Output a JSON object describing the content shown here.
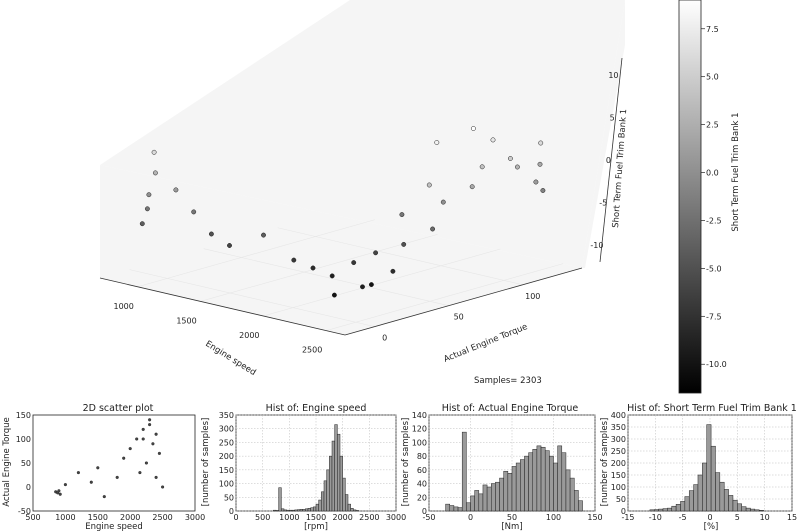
{
  "colors": {
    "low": "#000000",
    "high": "#ffffff",
    "bar": "#9a9a9a",
    "pane": "#f5f5f5"
  },
  "samples_text": "Samples= 2303",
  "chart_data": [
    {
      "id": "main3d",
      "type": "scatter",
      "title": "",
      "x_label": "Engine speed",
      "y_label": "Actual Engine Torque",
      "z_label": "Short Term Fuel Trim Bank 1",
      "x_ticks": [
        "1000",
        "1500",
        "2000",
        "2500"
      ],
      "y_ticks": [
        "0",
        "50",
        "100"
      ],
      "z_ticks": [
        "10",
        "5",
        "0",
        "-5",
        "-10"
      ],
      "xlim": [
        700,
        2650
      ],
      "ylim": [
        -20,
        140
      ],
      "zlim": [
        -12,
        12
      ],
      "color_by": "Short Term Fuel Trim Bank 1",
      "points": [
        [
          900,
          -10,
          0
        ],
        [
          900,
          -10,
          -2
        ],
        [
          910,
          -8,
          3
        ],
        [
          905,
          -10,
          6
        ],
        [
          895,
          -12,
          -4
        ],
        [
          1050,
          -5,
          1
        ],
        [
          1150,
          0,
          -2
        ],
        [
          1250,
          5,
          -5
        ],
        [
          1400,
          5,
          -6
        ],
        [
          1600,
          10,
          -4
        ],
        [
          1800,
          15,
          -7
        ],
        [
          1900,
          20,
          -8
        ],
        [
          2000,
          25,
          -9
        ],
        [
          2100,
          30,
          -7
        ],
        [
          2200,
          35,
          -10
        ],
        [
          2300,
          40,
          -8
        ],
        [
          2250,
          50,
          -5
        ],
        [
          2350,
          60,
          -3
        ],
        [
          2300,
          70,
          0
        ],
        [
          2400,
          80,
          2
        ],
        [
          2350,
          90,
          4
        ],
        [
          2450,
          100,
          5
        ],
        [
          2400,
          110,
          3
        ],
        [
          2500,
          115,
          1
        ],
        [
          2450,
          120,
          6
        ],
        [
          2200,
          70,
          8
        ],
        [
          2250,
          90,
          9
        ],
        [
          2300,
          100,
          7
        ],
        [
          2100,
          60,
          -2
        ],
        [
          2150,
          40,
          -6
        ],
        [
          2350,
          130,
          2
        ],
        [
          2450,
          125,
          -1
        ],
        [
          2300,
          20,
          -9
        ],
        [
          2200,
          10,
          -10
        ],
        [
          2400,
          50,
          4
        ]
      ]
    },
    {
      "id": "colorbar",
      "type": "heatmap",
      "label": "Short Term Fuel Trim Bank 1",
      "ticks": [
        "7.5",
        "5.0",
        "2.5",
        "0.0",
        "-2.5",
        "-5.0",
        "-7.5",
        "-10.0"
      ],
      "range": [
        -11.5,
        9
      ]
    },
    {
      "id": "scatter2d",
      "type": "scatter",
      "title": "2D scatter plot",
      "x_label": "Engine speed",
      "y_label": "Actual Engine Torque",
      "x_ticks": [
        "500",
        "1000",
        "1500",
        "2000",
        "2500",
        "3000"
      ],
      "y_ticks": [
        "150",
        "100",
        "50",
        "0",
        "-50"
      ],
      "xlim": [
        500,
        3000
      ],
      "ylim": [
        -50,
        150
      ],
      "points": [
        [
          850,
          -10
        ],
        [
          880,
          -12
        ],
        [
          900,
          -8
        ],
        [
          920,
          -15
        ],
        [
          1000,
          5
        ],
        [
          1200,
          30
        ],
        [
          1400,
          10
        ],
        [
          1500,
          40
        ],
        [
          1600,
          -20
        ],
        [
          1800,
          20
        ],
        [
          1900,
          60
        ],
        [
          2000,
          80
        ],
        [
          2100,
          100
        ],
        [
          2200,
          120
        ],
        [
          2300,
          130
        ],
        [
          2400,
          110
        ],
        [
          2350,
          90
        ],
        [
          2450,
          70
        ],
        [
          2250,
          50
        ],
        [
          2150,
          30
        ],
        [
          2400,
          20
        ],
        [
          2500,
          0
        ],
        [
          2300,
          140
        ],
        [
          2200,
          100
        ]
      ]
    },
    {
      "id": "hist_speed",
      "type": "bar",
      "title": "Hist of: Engine speed",
      "x_label": "[rpm]",
      "y_label": "[number of samples]",
      "x_ticks": [
        "0",
        "500",
        "1000",
        "1500",
        "2000",
        "2500",
        "3000"
      ],
      "y_ticks": [
        "350",
        "300",
        "250",
        "200",
        "150",
        "100",
        "50",
        "0"
      ],
      "xlim": [
        0,
        3000
      ],
      "ylim": [
        0,
        350
      ],
      "bin_start": 700,
      "bin_width": 50,
      "values": [
        3,
        2,
        85,
        8,
        4,
        3,
        3,
        3,
        4,
        5,
        6,
        6,
        8,
        10,
        12,
        15,
        25,
        40,
        70,
        110,
        150,
        200,
        255,
        315,
        280,
        200,
        120,
        60,
        25,
        10,
        4,
        2
      ]
    },
    {
      "id": "hist_torque",
      "type": "bar",
      "title": "Hist of: Actual Engine Torque",
      "x_label": "[Nm]",
      "y_label": "[number of samples]",
      "x_ticks": [
        "-50",
        "0",
        "50",
        "100",
        "150"
      ],
      "y_ticks": [
        "140",
        "120",
        "100",
        "80",
        "60",
        "40",
        "20",
        "0"
      ],
      "xlim": [
        -50,
        150
      ],
      "ylim": [
        0,
        140
      ],
      "bin_start": -30,
      "bin_width": 5,
      "values": [
        10,
        8,
        6,
        5,
        115,
        12,
        22,
        30,
        25,
        38,
        35,
        40,
        42,
        48,
        58,
        55,
        65,
        70,
        75,
        80,
        85,
        90,
        95,
        93,
        88,
        80,
        70,
        95,
        85,
        60,
        48,
        30,
        15
      ]
    },
    {
      "id": "hist_fuel",
      "type": "bar",
      "title": "Hist of: Short Term Fuel Trim Bank 1",
      "x_label": "[%]",
      "y_label": "[number of samples]",
      "x_ticks": [
        "-15",
        "-10",
        "-5",
        "0",
        "5",
        "10",
        "15"
      ],
      "y_ticks": [
        "400",
        "350",
        "300",
        "250",
        "200",
        "150",
        "100",
        "50",
        "0"
      ],
      "xlim": [
        -15,
        15
      ],
      "ylim": [
        0,
        400
      ],
      "bin_start": -11,
      "bin_width": 0.8,
      "values": [
        5,
        6,
        8,
        10,
        12,
        20,
        28,
        40,
        60,
        85,
        110,
        150,
        200,
        360,
        270,
        160,
        120,
        90,
        65,
        45,
        30,
        18,
        12,
        8,
        5,
        3
      ]
    }
  ]
}
